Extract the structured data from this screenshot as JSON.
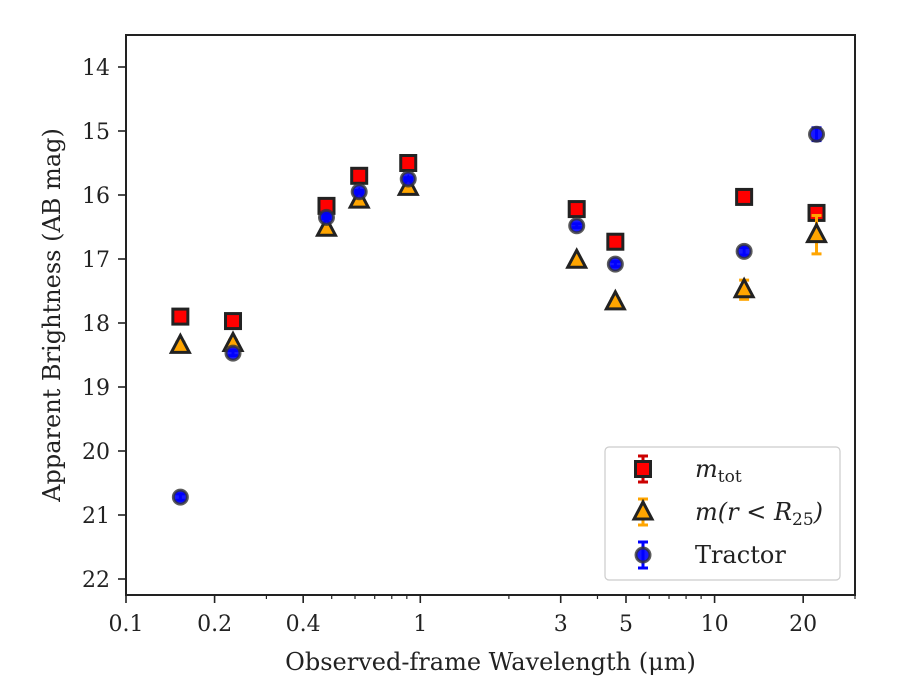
{
  "chart_data": {
    "type": "scatter",
    "title": "",
    "xlabel": "Observed-frame Wavelength (μm)",
    "ylabel": "Apparent Brightness (AB mag)",
    "xscale": "log",
    "xlim": [
      0.1,
      30
    ],
    "ylim": [
      22.25,
      13.5
    ],
    "y_inverted": true,
    "grid": false,
    "legend_position": "lower-right",
    "x_ticks": [
      {
        "value": 0.1,
        "label": "0.1"
      },
      {
        "value": 0.2,
        "label": "0.2"
      },
      {
        "value": 0.4,
        "label": "0.4"
      },
      {
        "value": 1,
        "label": "1"
      },
      {
        "value": 3,
        "label": "3"
      },
      {
        "value": 5,
        "label": "5"
      },
      {
        "value": 10,
        "label": "10"
      },
      {
        "value": 20,
        "label": "20"
      }
    ],
    "y_ticks": [
      {
        "value": 14,
        "label": "14"
      },
      {
        "value": 15,
        "label": "15"
      },
      {
        "value": 16,
        "label": "16"
      },
      {
        "value": 17,
        "label": "17"
      },
      {
        "value": 18,
        "label": "18"
      },
      {
        "value": 19,
        "label": "19"
      },
      {
        "value": 20,
        "label": "20"
      },
      {
        "value": 21,
        "label": "21"
      },
      {
        "value": 22,
        "label": "22"
      }
    ],
    "series": [
      {
        "name": "m_tot",
        "legend_main": "m",
        "legend_sub": "tot",
        "marker": "square",
        "color": "#ff0000",
        "errcolor": "#cc0000",
        "x": [
          0.153,
          0.231,
          0.48,
          0.62,
          0.91,
          3.4,
          4.6,
          12.6,
          22.2
        ],
        "y": [
          17.9,
          17.97,
          16.17,
          15.7,
          15.5,
          16.22,
          16.73,
          16.03,
          16.28
        ],
        "err": [
          0.03,
          0.03,
          0.02,
          0.02,
          0.02,
          0.03,
          0.04,
          0.05,
          0.08
        ]
      },
      {
        "name": "m(r < R25)",
        "legend_main": "m(r < R",
        "legend_sub": "25",
        "legend_tail": ")",
        "marker": "triangle",
        "color": "#ffa500",
        "errcolor": "#ffa500",
        "x": [
          0.153,
          0.231,
          0.48,
          0.62,
          0.91,
          3.4,
          4.6,
          12.6,
          22.2
        ],
        "y": [
          18.35,
          18.32,
          16.52,
          16.08,
          15.88,
          17.02,
          17.67,
          17.48,
          16.62
        ],
        "err": [
          0.05,
          0.05,
          0.02,
          0.02,
          0.02,
          0.03,
          0.05,
          0.15,
          0.3
        ]
      },
      {
        "name": "Tractor",
        "legend_main": "Tractor",
        "marker": "circle",
        "color": "#0000ff",
        "errcolor": "#0000ff",
        "x": [
          0.153,
          0.231,
          0.48,
          0.62,
          0.91,
          3.4,
          4.6,
          12.6,
          22.2
        ],
        "y": [
          20.72,
          18.47,
          16.35,
          15.95,
          15.75,
          16.48,
          17.08,
          16.88,
          15.05
        ],
        "err": [
          0.05,
          0.04,
          0.02,
          0.02,
          0.02,
          0.03,
          0.04,
          0.06,
          0.1
        ]
      }
    ]
  }
}
